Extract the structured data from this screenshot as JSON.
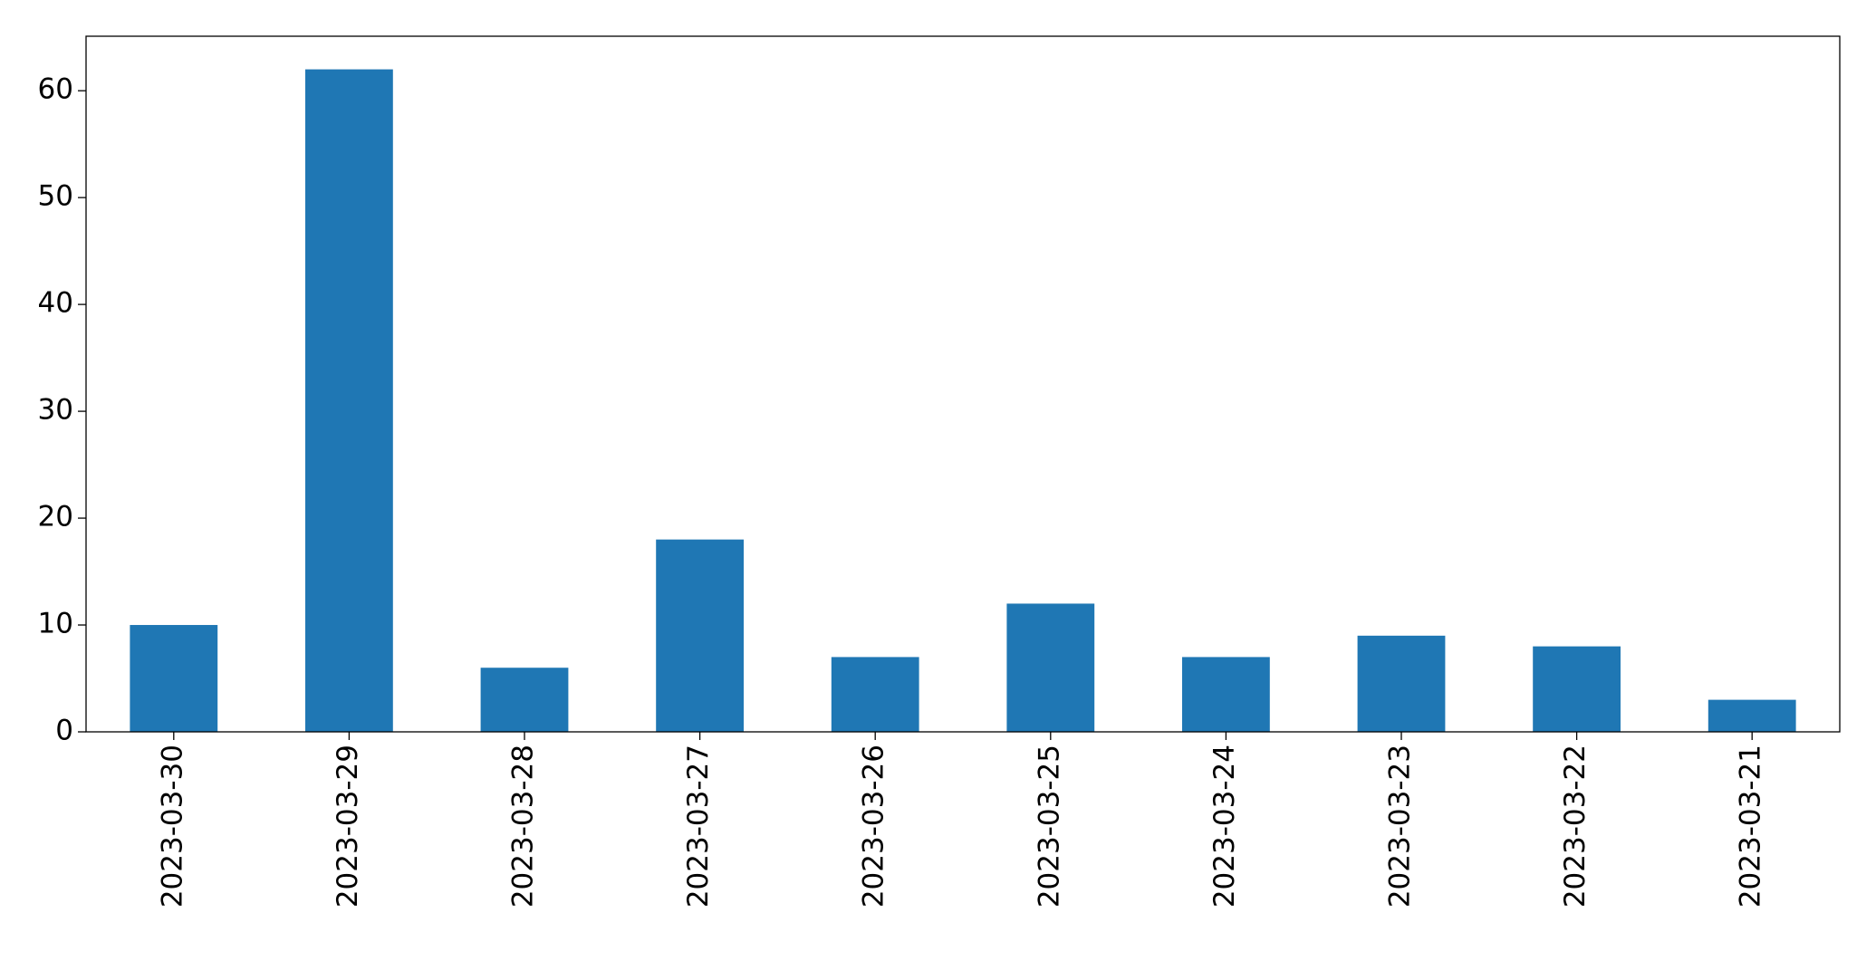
{
  "chart_data": {
    "type": "bar",
    "categories": [
      "2023-03-30",
      "2023-03-29",
      "2023-03-28",
      "2023-03-27",
      "2023-03-26",
      "2023-03-25",
      "2023-03-24",
      "2023-03-23",
      "2023-03-22",
      "2023-03-21"
    ],
    "values": [
      10,
      62,
      6,
      18,
      7,
      12,
      7,
      9,
      8,
      3
    ],
    "color": "#1f77b4",
    "ylim": [
      0,
      65.1
    ],
    "yticks": [
      0,
      10,
      20,
      30,
      40,
      50,
      60
    ],
    "grid": false
  }
}
